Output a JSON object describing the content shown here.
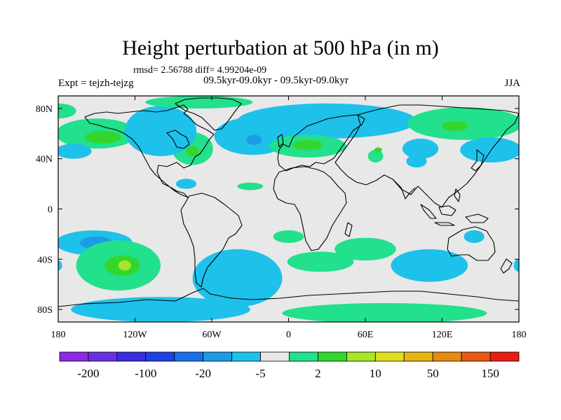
{
  "chart_data": {
    "type": "heatmap",
    "title": "Height perturbation at 500 hPa (in m)",
    "stats": "rmsd= 2.56788 diff= 4.99204e-09",
    "experiment": "Expt = tejzh-tejzg",
    "period": "09.5kyr-09.0kyr - 09.5kyr-09.0kyr",
    "season": "JJA",
    "xlim": [
      -180,
      180
    ],
    "ylim": [
      -90,
      90
    ],
    "x_ticks": [
      {
        "value": -180,
        "label": "180"
      },
      {
        "value": -120,
        "label": "120W"
      },
      {
        "value": -60,
        "label": "60W"
      },
      {
        "value": 0,
        "label": "0"
      },
      {
        "value": 60,
        "label": "60E"
      },
      {
        "value": 120,
        "label": "120E"
      },
      {
        "value": 180,
        "label": "180"
      }
    ],
    "y_ticks": [
      {
        "value": 80,
        "label": "80N"
      },
      {
        "value": 40,
        "label": "40N"
      },
      {
        "value": 0,
        "label": "0"
      },
      {
        "value": -40,
        "label": "40S"
      },
      {
        "value": -80,
        "label": "80S"
      }
    ],
    "colorbar": {
      "colors": [
        "#8a2be2",
        "#6a2fe0",
        "#3b2ee0",
        "#2040e0",
        "#1a6fe6",
        "#1e9be6",
        "#1ec1ea",
        "#e8e8e8",
        "#22e08c",
        "#34d62e",
        "#a8e62a",
        "#dede22",
        "#e6b414",
        "#e68a14",
        "#e65a14",
        "#e61e14"
      ],
      "labels": [
        "-200",
        "-100",
        "-20",
        "-5",
        "2",
        "10",
        "50",
        "150"
      ]
    },
    "anomalies": [
      {
        "lon": -150,
        "lat": 60,
        "rx": 32,
        "ry": 12,
        "level": 1
      },
      {
        "lon": -145,
        "lat": 57,
        "rx": 14,
        "ry": 5,
        "level": 2
      },
      {
        "lon": -180,
        "lat": 78,
        "rx": 14,
        "ry": 6,
        "level": 1
      },
      {
        "lon": -168,
        "lat": 46,
        "rx": 14,
        "ry": 6,
        "level": -1
      },
      {
        "lon": -75,
        "lat": 48,
        "rx": 16,
        "ry": 13,
        "level": 1
      },
      {
        "lon": -75,
        "lat": 46,
        "rx": 5,
        "ry": 4,
        "level": 2
      },
      {
        "lon": -100,
        "lat": 62,
        "rx": 28,
        "ry": 20,
        "level": -1
      },
      {
        "lon": -70,
        "lat": 85,
        "rx": 42,
        "ry": 5,
        "level": 1
      },
      {
        "lon": -28,
        "lat": 58,
        "rx": 30,
        "ry": 15,
        "level": -1
      },
      {
        "lon": -27,
        "lat": 55,
        "rx": 6,
        "ry": 4,
        "level": -2
      },
      {
        "lon": 30,
        "lat": 70,
        "rx": 70,
        "ry": 14,
        "level": -1
      },
      {
        "lon": 15,
        "lat": 50,
        "rx": 30,
        "ry": 9,
        "level": 1
      },
      {
        "lon": 15,
        "lat": 51,
        "rx": 12,
        "ry": 4,
        "level": 2
      },
      {
        "lon": 138,
        "lat": 68,
        "rx": 45,
        "ry": 13,
        "level": 1
      },
      {
        "lon": 130,
        "lat": 66,
        "rx": 10,
        "ry": 4,
        "level": 2
      },
      {
        "lon": 158,
        "lat": 47,
        "rx": 24,
        "ry": 10,
        "level": -1
      },
      {
        "lon": 103,
        "lat": 48,
        "rx": 14,
        "ry": 8,
        "level": -1
      },
      {
        "lon": 100,
        "lat": 38,
        "rx": 8,
        "ry": 5,
        "level": -1
      },
      {
        "lon": 68,
        "lat": 42,
        "rx": 6,
        "ry": 5,
        "level": 1
      },
      {
        "lon": -80,
        "lat": 20,
        "rx": 8,
        "ry": 4,
        "level": -1
      },
      {
        "lon": -30,
        "lat": 18,
        "rx": 10,
        "ry": 3,
        "level": 1
      },
      {
        "lon": 0,
        "lat": -22,
        "rx": 12,
        "ry": 5,
        "level": 1
      },
      {
        "lon": 145,
        "lat": -22,
        "rx": 8,
        "ry": 5,
        "level": -1
      },
      {
        "lon": -152,
        "lat": -27,
        "rx": 30,
        "ry": 10,
        "level": -1
      },
      {
        "lon": -150,
        "lat": -27,
        "rx": 13,
        "ry": 5,
        "level": -2
      },
      {
        "lon": -133,
        "lat": -45,
        "rx": 33,
        "ry": 20,
        "level": 1
      },
      {
        "lon": -130,
        "lat": -45,
        "rx": 14,
        "ry": 8,
        "level": 2
      },
      {
        "lon": -128,
        "lat": -45,
        "rx": 5,
        "ry": 4,
        "level": 3
      },
      {
        "lon": -40,
        "lat": -55,
        "rx": 35,
        "ry": 23,
        "level": -1
      },
      {
        "lon": -100,
        "lat": -80,
        "rx": 70,
        "ry": 10,
        "level": -1
      },
      {
        "lon": 60,
        "lat": -32,
        "rx": 24,
        "ry": 9,
        "level": 1
      },
      {
        "lon": 25,
        "lat": -42,
        "rx": 26,
        "ry": 8,
        "level": 1
      },
      {
        "lon": 110,
        "lat": -45,
        "rx": 30,
        "ry": 13,
        "level": -1
      },
      {
        "lon": 75,
        "lat": -83,
        "rx": 80,
        "ry": 8,
        "level": 1
      },
      {
        "lon": 180,
        "lat": -45,
        "rx": 4,
        "ry": 5,
        "level": -1
      },
      {
        "lon": -180,
        "lat": -45,
        "rx": 3,
        "ry": 4,
        "level": -1
      },
      {
        "lon": 70,
        "lat": 47,
        "rx": 3,
        "ry": 2,
        "level": 2
      }
    ]
  }
}
